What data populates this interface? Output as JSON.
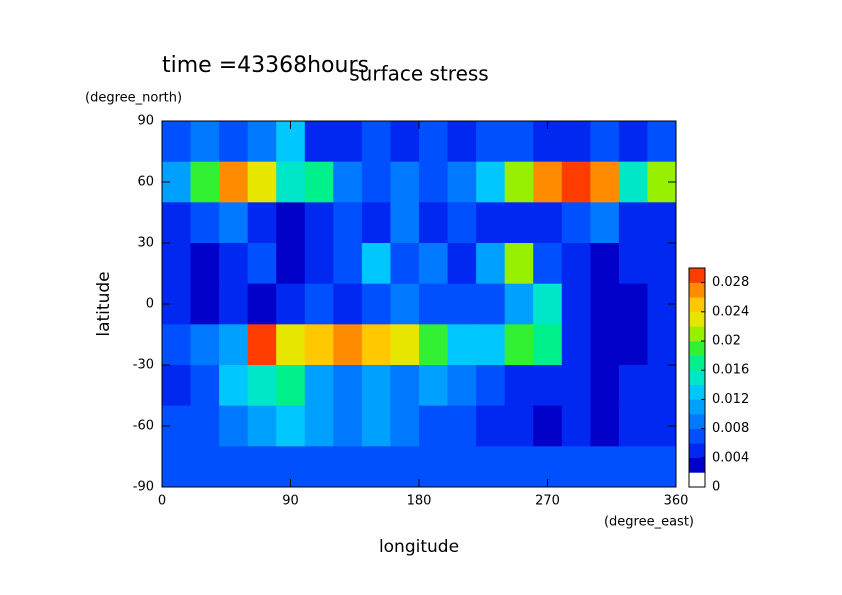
{
  "chart_data": {
    "type": "contourf",
    "title": "time =43368hours",
    "subtitle": "surface stress",
    "x_label": "longitude",
    "x_units": "(degree_east)",
    "y_label": "latitude",
    "y_units": "(degree_north)",
    "xlim": [
      0,
      360
    ],
    "ylim": [
      -90,
      90
    ],
    "xticks": [
      0,
      90,
      180,
      270,
      360
    ],
    "yticks": [
      -90,
      -60,
      -30,
      0,
      30,
      60,
      90
    ],
    "lon": [
      10,
      30,
      50,
      70,
      90,
      110,
      130,
      150,
      170,
      190,
      210,
      230,
      250,
      270,
      290,
      310,
      330,
      350
    ],
    "lat": [
      80,
      60,
      40,
      20,
      0,
      -20,
      -40,
      -60,
      -80
    ],
    "z": [
      [
        0.006,
        0.008,
        0.006,
        0.008,
        0.012,
        0.004,
        0.004,
        0.006,
        0.004,
        0.006,
        0.004,
        0.006,
        0.006,
        0.004,
        0.004,
        0.006,
        0.004,
        0.006
      ],
      [
        0.01,
        0.018,
        0.026,
        0.022,
        0.014,
        0.016,
        0.008,
        0.006,
        0.008,
        0.006,
        0.008,
        0.012,
        0.02,
        0.026,
        0.028,
        0.026,
        0.014,
        0.02
      ],
      [
        0.004,
        0.006,
        0.008,
        0.004,
        0.002,
        0.004,
        0.006,
        0.004,
        0.008,
        0.004,
        0.006,
        0.004,
        0.004,
        0.004,
        0.006,
        0.008,
        0.004,
        0.004
      ],
      [
        0.004,
        0.002,
        0.004,
        0.006,
        0.002,
        0.004,
        0.006,
        0.012,
        0.006,
        0.008,
        0.004,
        0.01,
        0.02,
        0.006,
        0.004,
        0.002,
        0.004,
        0.004
      ],
      [
        0.004,
        0.002,
        0.004,
        0.002,
        0.004,
        0.006,
        0.004,
        0.006,
        0.008,
        0.006,
        0.006,
        0.006,
        0.01,
        0.014,
        0.004,
        0.002,
        0.002,
        0.004
      ],
      [
        0.006,
        0.008,
        0.01,
        0.028,
        0.022,
        0.024,
        0.026,
        0.024,
        0.022,
        0.018,
        0.012,
        0.012,
        0.018,
        0.016,
        0.004,
        0.002,
        0.002,
        0.004
      ],
      [
        0.004,
        0.006,
        0.012,
        0.014,
        0.016,
        0.01,
        0.008,
        0.01,
        0.008,
        0.01,
        0.008,
        0.006,
        0.004,
        0.004,
        0.004,
        0.002,
        0.004,
        0.004
      ],
      [
        0.006,
        0.006,
        0.008,
        0.01,
        0.012,
        0.01,
        0.008,
        0.01,
        0.008,
        0.006,
        0.006,
        0.004,
        0.004,
        0.002,
        0.004,
        0.002,
        0.004,
        0.004
      ],
      [
        0.006,
        0.006,
        0.006,
        0.006,
        0.006,
        0.006,
        0.006,
        0.006,
        0.006,
        0.006,
        0.006,
        0.006,
        0.006,
        0.006,
        0.006,
        0.006,
        0.006,
        0.006
      ]
    ],
    "levels": [
      0,
      0.002,
      0.004,
      0.006,
      0.008,
      0.01,
      0.012,
      0.014,
      0.016,
      0.018,
      0.02,
      0.022,
      0.024,
      0.026,
      0.028,
      0.03
    ],
    "colors": [
      "#ffffff",
      "#0000c8",
      "#0028f0",
      "#0050ff",
      "#0078ff",
      "#00a0ff",
      "#00c8ff",
      "#00e6c8",
      "#00f08c",
      "#32f032",
      "#96f000",
      "#e6e600",
      "#ffc800",
      "#ff8c00",
      "#ff3c00"
    ],
    "clim": [
      0,
      0.03
    ],
    "cticks": [
      0,
      0.004,
      0.008,
      0.012,
      0.016,
      0.02,
      0.024,
      0.028
    ]
  }
}
